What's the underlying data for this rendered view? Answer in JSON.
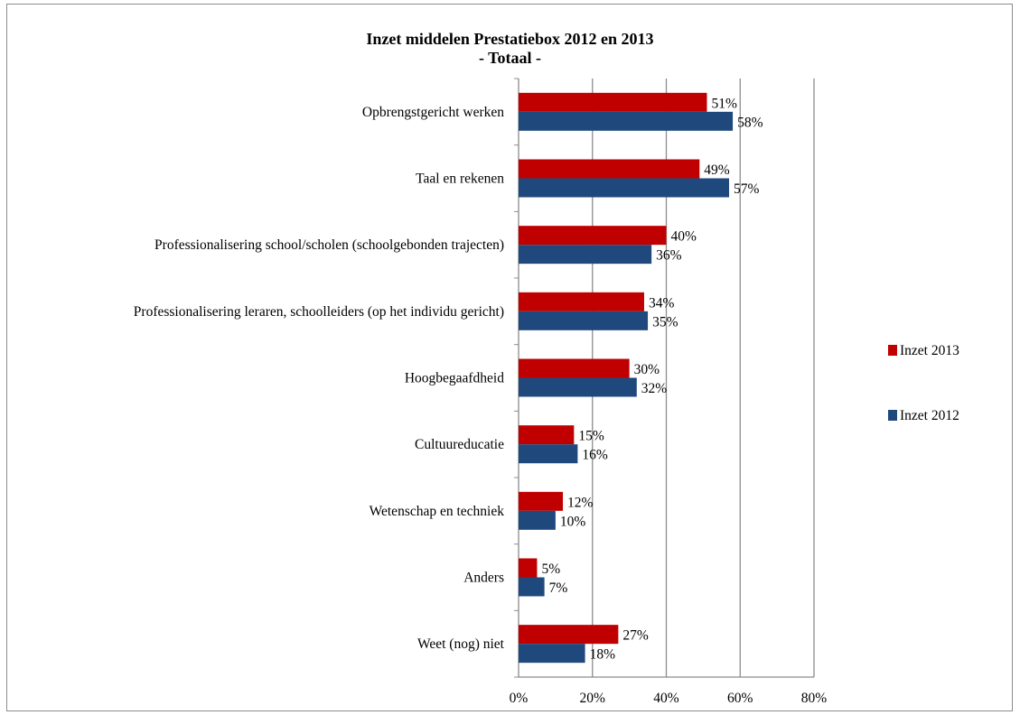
{
  "chart_data": {
    "type": "bar",
    "orientation": "horizontal",
    "title": "Inzet middelen Prestatiebox 2012 en 2013",
    "subtitle": "- Totaal -",
    "categories": [
      "Opbrengstgericht werken",
      "Taal en rekenen",
      "Professionalisering school/scholen (schoolgebonden trajecten)",
      "Professionalisering leraren, schoolleiders (op het individu gericht)",
      "Hoogbegaafdheid",
      "Cultuureducatie",
      "Wetenschap en techniek",
      "Anders",
      "Weet (nog) niet"
    ],
    "series": [
      {
        "name": "Inzet 2013",
        "color": "#c00000",
        "values": [
          51,
          49,
          40,
          34,
          30,
          15,
          12,
          5,
          27
        ],
        "labels": [
          "51%",
          "49%",
          "40%",
          "34%",
          "30%",
          "15%",
          "12%",
          "5%",
          "27%"
        ]
      },
      {
        "name": "Inzet 2012",
        "color": "#1f497d",
        "values": [
          58,
          57,
          36,
          35,
          32,
          16,
          10,
          7,
          18
        ],
        "labels": [
          "58%",
          "57%",
          "36%",
          "35%",
          "32%",
          "16%",
          "10%",
          "7%",
          "18%"
        ]
      }
    ],
    "xlim": [
      0,
      80
    ],
    "xticks": [
      "0%",
      "20%",
      "40%",
      "60%",
      "80%"
    ],
    "grid": true,
    "legend_position": "right"
  }
}
